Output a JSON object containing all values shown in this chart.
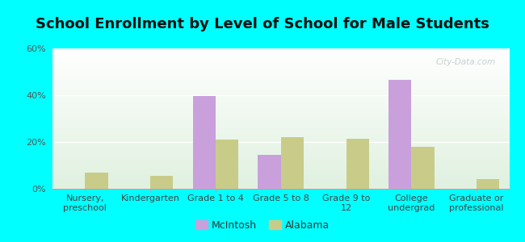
{
  "title": "School Enrollment by Level of School for Male Students",
  "categories": [
    "Nursery,\npreschool",
    "Kindergarten",
    "Grade 1 to 4",
    "Grade 5 to 8",
    "Grade 9 to\n12",
    "College\nundergrad",
    "Graduate or\nprofessional"
  ],
  "mcintosh_values": [
    0,
    0,
    39.5,
    14.5,
    0,
    46.5,
    0
  ],
  "alabama_values": [
    7,
    5.5,
    21,
    22,
    21.5,
    18,
    4
  ],
  "mcintosh_color": "#c9a0dc",
  "alabama_color": "#c8cc88",
  "background_color": "#00ffff",
  "plot_bg_color": "#f0f8ee",
  "ylim": [
    0,
    60
  ],
  "yticks": [
    0,
    20,
    40,
    60
  ],
  "ytick_labels": [
    "0%",
    "20%",
    "40%",
    "60%"
  ],
  "title_fontsize": 13,
  "tick_label_fontsize": 8,
  "legend_labels": [
    "McIntosh",
    "Alabama"
  ],
  "bar_width": 0.35,
  "watermark": "City-Data.com"
}
